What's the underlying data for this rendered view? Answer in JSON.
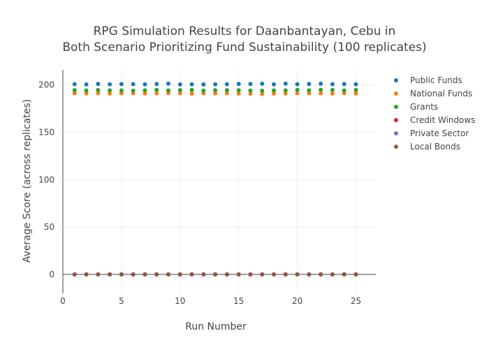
{
  "chart_data": {
    "type": "scatter",
    "title_lines": [
      "RPG Simulation Results for Daanbantayan, Cebu in",
      "Both Scenario Prioritizing Fund Sustainability (100 replicates)"
    ],
    "xlabel": "Run Number",
    "ylabel": "Average Score (across replicates)",
    "xlim": [
      0,
      26.7
    ],
    "ylim": [
      -20,
      216
    ],
    "x_ticks": [
      0,
      5,
      10,
      15,
      20,
      25
    ],
    "y_ticks": [
      0,
      50,
      100,
      150,
      200
    ],
    "grid": true,
    "legend_position": "top-right",
    "x": [
      1,
      2,
      3,
      4,
      5,
      6,
      7,
      8,
      9,
      10,
      11,
      12,
      13,
      14,
      15,
      16,
      17,
      18,
      19,
      20,
      21,
      22,
      23,
      24,
      25
    ],
    "series": [
      {
        "name": "Public Funds",
        "color": "#1f77b4",
        "values": [
          200.9,
          200.6,
          201.2,
          200.7,
          201.0,
          200.9,
          200.7,
          201.1,
          201.4,
          200.6,
          200.7,
          200.6,
          200.7,
          200.8,
          201.2,
          201.1,
          201.3,
          200.7,
          201.4,
          200.8,
          201.1,
          201.3,
          200.9,
          201.1,
          200.8
        ]
      },
      {
        "name": "National Funds",
        "color": "#ff7f0e",
        "values": [
          191.2,
          191.0,
          191.3,
          190.9,
          191.1,
          191.2,
          191.0,
          191.2,
          191.4,
          191.3,
          190.8,
          191.2,
          191.1,
          191.3,
          190.9,
          190.8,
          190.5,
          190.9,
          191.0,
          191.3,
          191.1,
          191.2,
          190.9,
          191.3,
          191.0
        ]
      },
      {
        "name": "Grants",
        "color": "#2ca02c",
        "values": [
          194.5,
          194.2,
          194.6,
          194.3,
          194.2,
          194.0,
          194.3,
          194.9,
          194.2,
          194.5,
          194.7,
          194.1,
          194.5,
          194.5,
          194.4,
          194.1,
          194.0,
          194.2,
          194.3,
          194.8,
          194.3,
          194.9,
          194.7,
          194.2,
          194.7
        ]
      },
      {
        "name": "Credit Windows",
        "color": "#d62728",
        "values": [
          0,
          0,
          0,
          0,
          0,
          0,
          0,
          0,
          0,
          0,
          0,
          0,
          0,
          0,
          0,
          0,
          0,
          0,
          0,
          0,
          0,
          0,
          0,
          0,
          0
        ]
      },
      {
        "name": "Private Sector",
        "color": "#9467bd",
        "values": [
          0,
          0,
          0,
          0,
          0,
          0,
          0,
          0,
          0,
          0,
          0,
          0,
          0,
          0,
          0,
          0,
          0,
          0,
          0,
          0,
          0,
          0,
          0,
          0,
          0
        ]
      },
      {
        "name": "Local Bonds",
        "color": "#8c564b",
        "values": [
          0,
          0,
          0,
          0,
          0,
          0,
          0,
          0,
          0,
          0,
          0,
          0,
          0,
          0,
          0,
          0,
          0,
          0,
          0,
          0,
          0,
          0,
          0,
          0,
          0
        ]
      }
    ]
  }
}
